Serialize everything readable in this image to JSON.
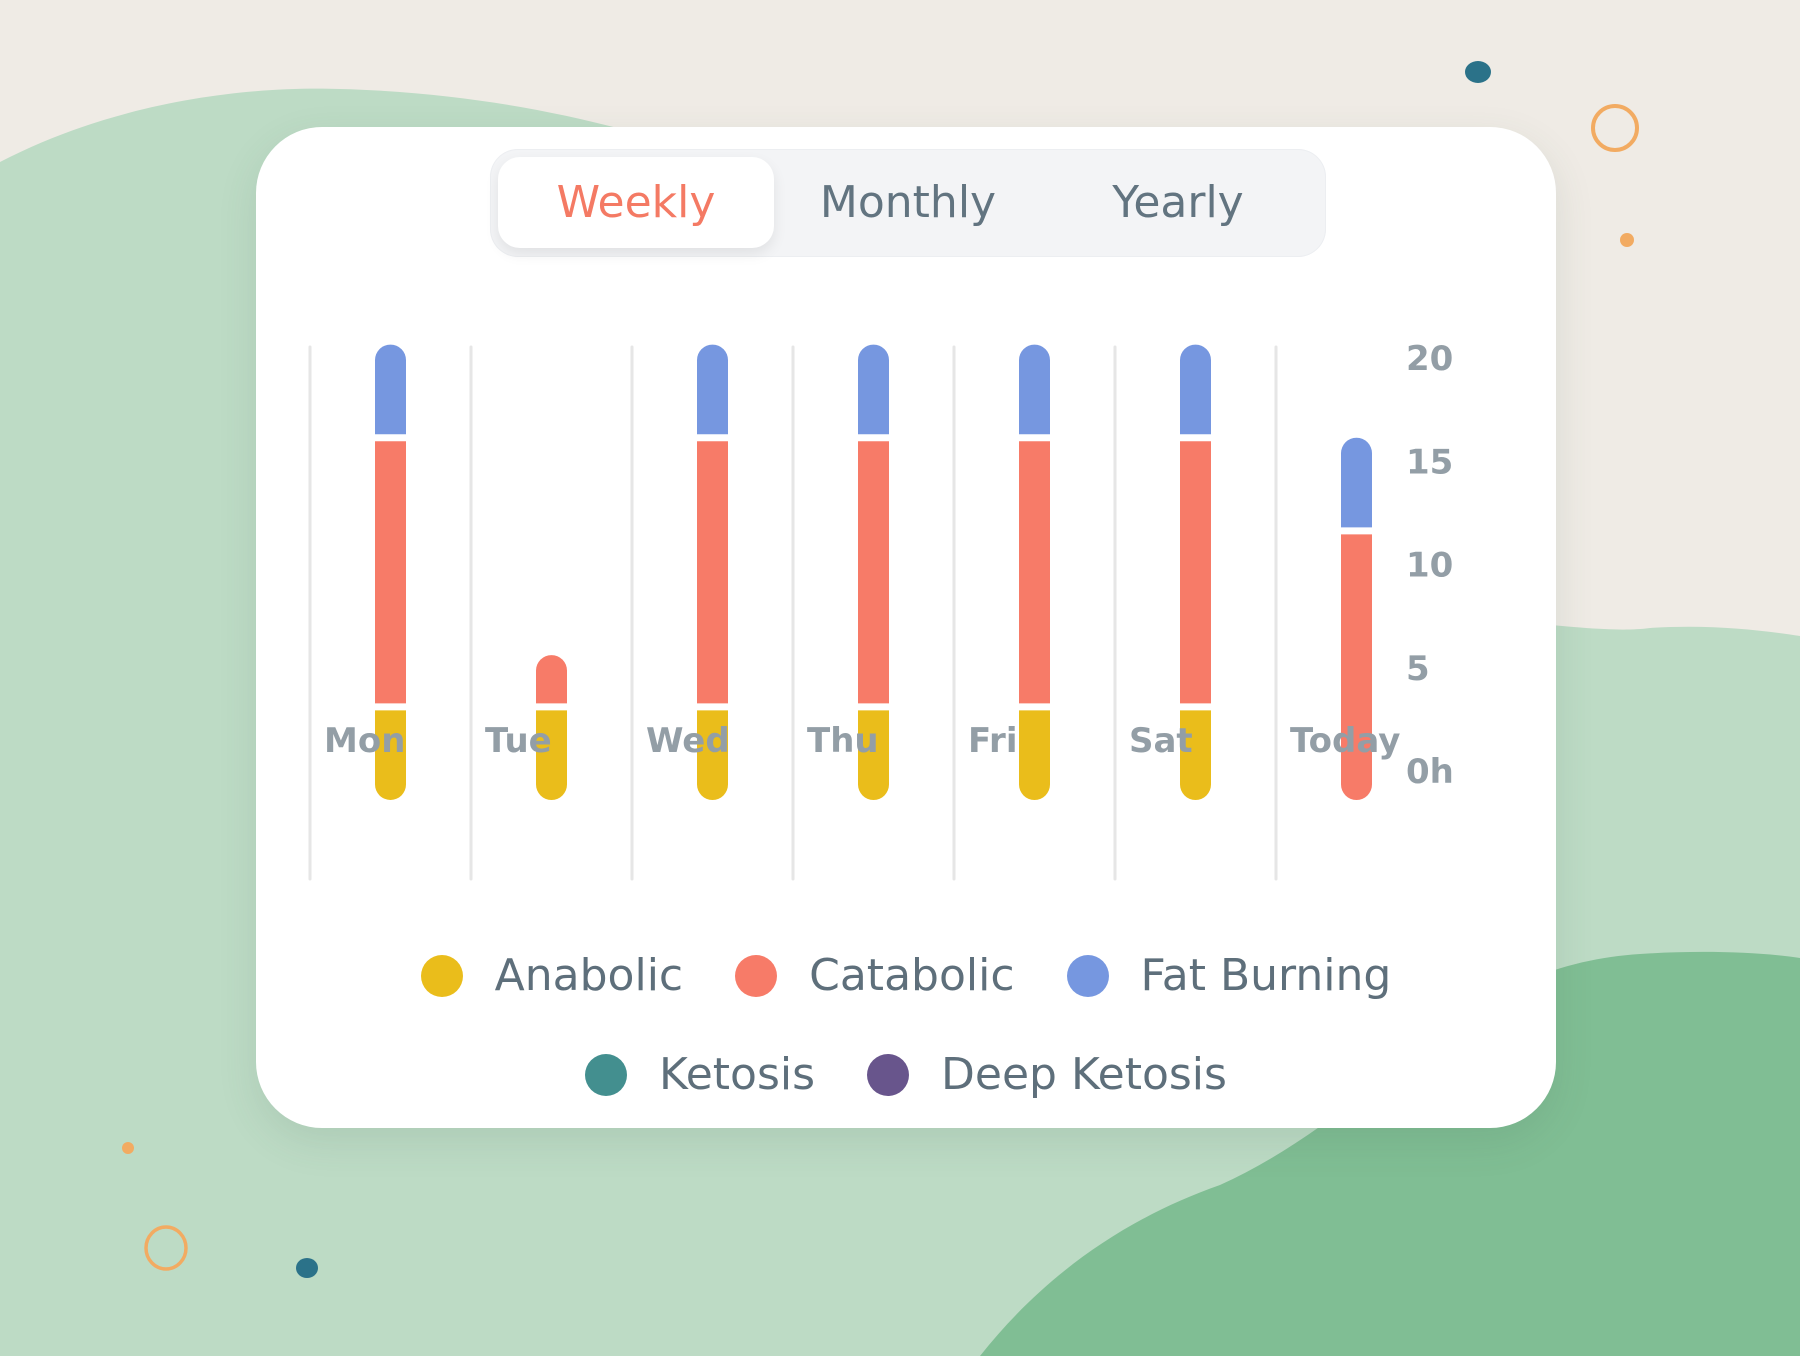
{
  "tabs": [
    {
      "label": "Weekly",
      "active": true
    },
    {
      "label": "Monthly",
      "active": false
    },
    {
      "label": "Yearly",
      "active": false
    }
  ],
  "colors": {
    "anabolic": "#eabd1b",
    "catabolic": "#f77b68",
    "fat_burning": "#7697e0",
    "ketosis": "#438f8f",
    "deep_ketosis": "#68558c",
    "active_tab": "#f47a64",
    "background": "#efebe5",
    "green_light": "#bddbc5",
    "green_dark": "#80be94",
    "decor_orange": "#f2ab62",
    "decor_teal": "#2b7289"
  },
  "chart_data": {
    "type": "bar",
    "stacked": true,
    "title": "",
    "xlabel": "",
    "ylabel": "",
    "categories": [
      "Mon",
      "Tue",
      "Wed",
      "Thu",
      "Fri",
      "Sat",
      "Today"
    ],
    "series": [
      {
        "name": "Anabolic",
        "key": "anabolic",
        "values": [
          4.5,
          4.5,
          4.5,
          4.5,
          4.5,
          4.5,
          0
        ]
      },
      {
        "name": "Catabolic",
        "key": "catabolic",
        "values": [
          13,
          2.5,
          13,
          13,
          13,
          13,
          13
        ]
      },
      {
        "name": "Fat Burning",
        "key": "fat_burning",
        "values": [
          4.5,
          0,
          4.5,
          4.5,
          4.5,
          4.5,
          4.5
        ]
      },
      {
        "name": "Ketosis",
        "key": "ketosis",
        "values": [
          0,
          0,
          0,
          0,
          0,
          0,
          0
        ]
      },
      {
        "name": "Deep Ketosis",
        "key": "deep_ketosis",
        "values": [
          0,
          0,
          0,
          0,
          0,
          0,
          0
        ]
      }
    ],
    "y_ticks": [
      {
        "value": 20,
        "label": "20"
      },
      {
        "value": 15,
        "label": "15"
      },
      {
        "value": 10,
        "label": "10"
      },
      {
        "value": 5,
        "label": "5"
      },
      {
        "value": 0,
        "label": "0h"
      }
    ],
    "ylim": [
      0,
      20
    ],
    "y_axis_side": "right",
    "grid": "vertical separators",
    "legend": {
      "placement": "bottom",
      "rows": [
        [
          "Anabolic",
          "Catabolic",
          "Fat Burning"
        ],
        [
          "Ketosis",
          "Deep Ketosis"
        ]
      ]
    }
  }
}
